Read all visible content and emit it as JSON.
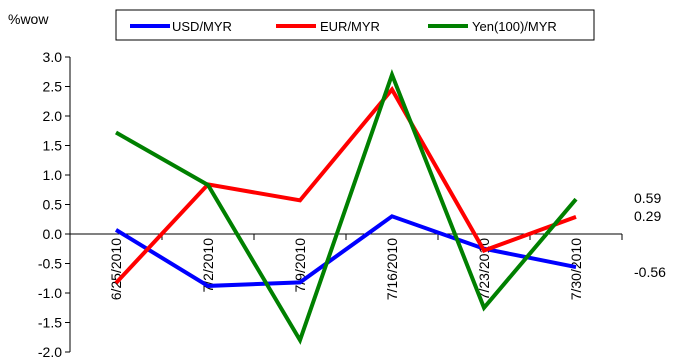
{
  "chart_data": {
    "type": "line",
    "ylabel": "%wow",
    "categories": [
      "6/25/2010",
      "7/2/2010",
      "7/9/2010",
      "7/16/2010",
      "7/23/2010",
      "7/30/2010"
    ],
    "ylim": [
      -2.0,
      3.0
    ],
    "yticks": [
      "3.0",
      "2.5",
      "2.0",
      "1.5",
      "1.0",
      "0.5",
      "0.0",
      "-0.5",
      "-1.0",
      "-1.5",
      "-2.0"
    ],
    "ytick_values": [
      3.0,
      2.5,
      2.0,
      1.5,
      1.0,
      0.5,
      0.0,
      -0.5,
      -1.0,
      -1.5,
      -2.0
    ],
    "grid": false,
    "legend_position": "top",
    "series": [
      {
        "name": "USD/MYR",
        "color": "#0000ff",
        "values": [
          0.07,
          -0.88,
          -0.82,
          0.3,
          -0.25,
          -0.56
        ]
      },
      {
        "name": "EUR/MYR",
        "color": "#ff0000",
        "values": [
          -0.83,
          0.84,
          0.57,
          2.45,
          -0.28,
          0.29
        ]
      },
      {
        "name": "Yen(100)/MYR",
        "color": "#008000",
        "values": [
          1.72,
          0.83,
          -1.8,
          2.7,
          -1.25,
          0.59
        ]
      }
    ],
    "end_labels": [
      {
        "text": "0.59",
        "value": 0.59
      },
      {
        "text": "0.29",
        "value": 0.29
      },
      {
        "text": "-0.56",
        "value": -0.56
      }
    ]
  }
}
